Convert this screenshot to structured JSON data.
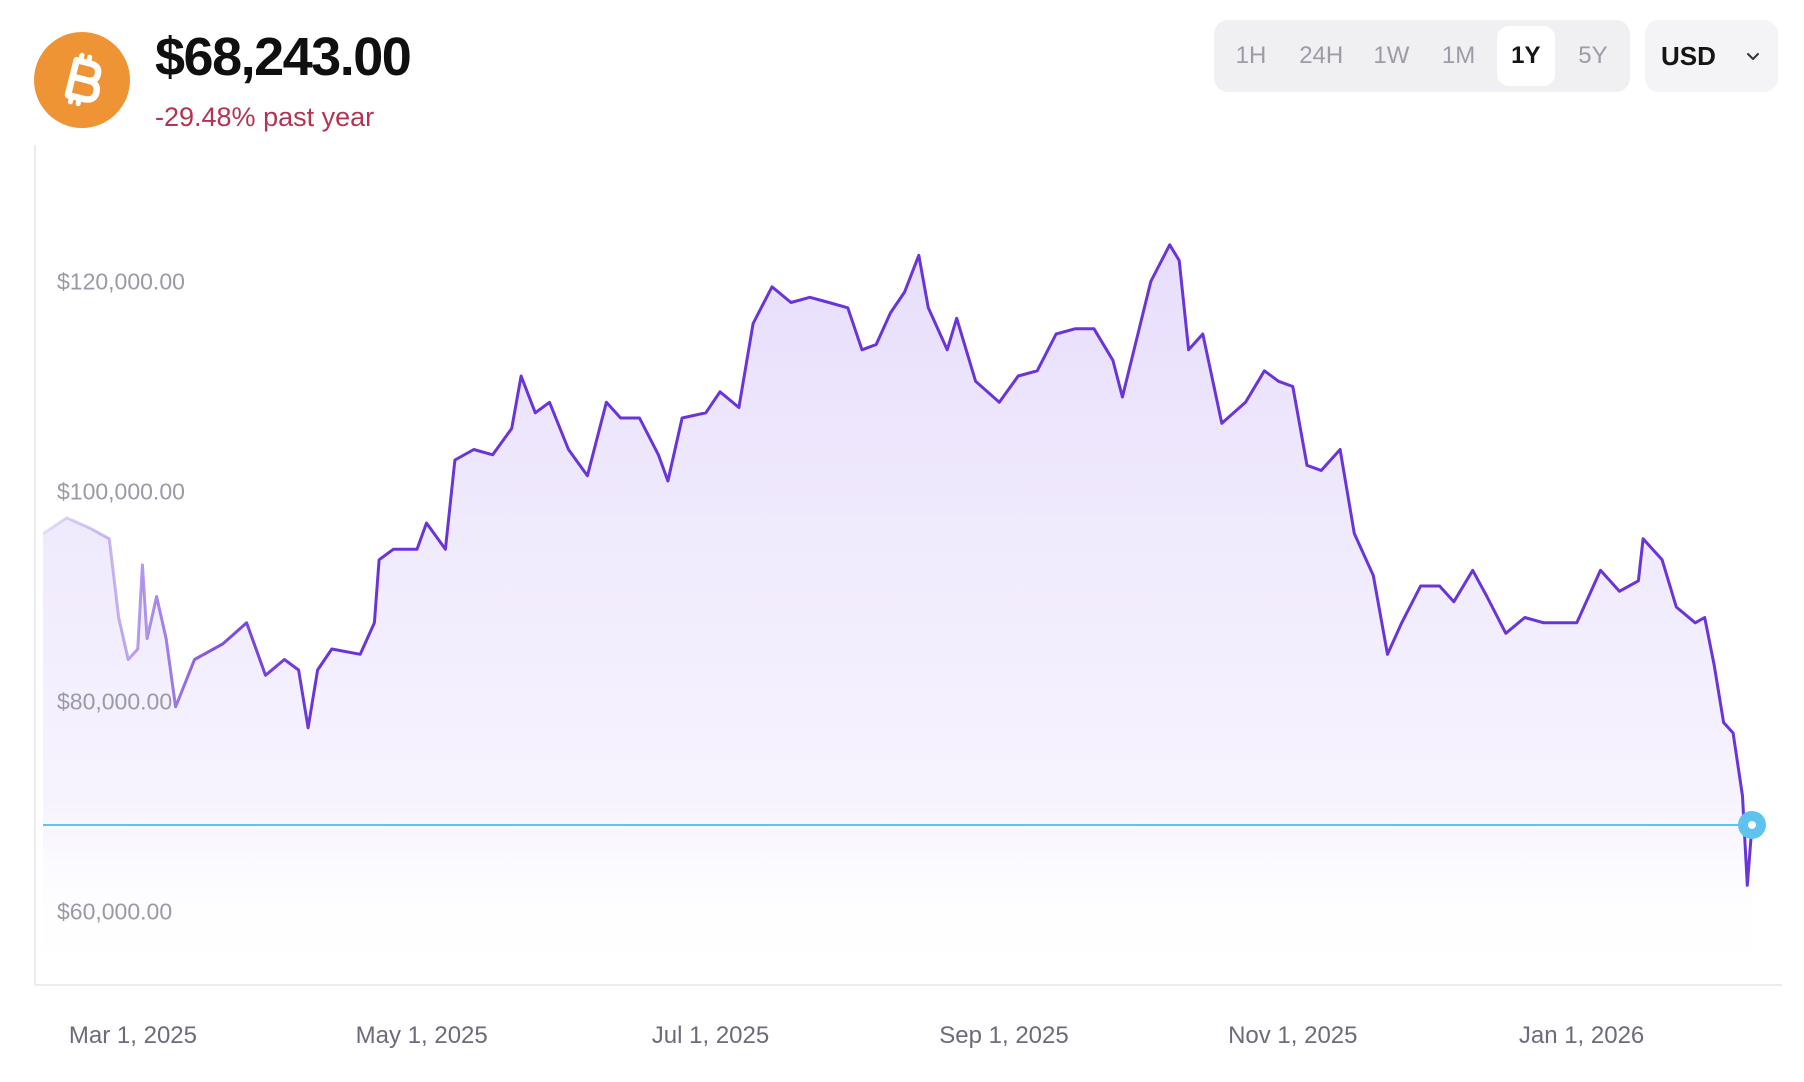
{
  "header": {
    "coin_icon": "bitcoin-icon",
    "price": "$68,243.00",
    "change": "-29.48% past year"
  },
  "ranges": [
    {
      "label": "1H",
      "active": false
    },
    {
      "label": "24H",
      "active": false
    },
    {
      "label": "1W",
      "active": false
    },
    {
      "label": "1M",
      "active": false
    },
    {
      "label": "1Y",
      "active": true
    },
    {
      "label": "5Y",
      "active": false
    }
  ],
  "currency": {
    "label": "USD",
    "icon": "chevron-down-icon"
  },
  "colors": {
    "brand": "#ef9434",
    "line": "#6a35d8",
    "area": "#e6dcfb",
    "marker": "#5ec3ef",
    "negative": "#b53350"
  },
  "chart_data": {
    "type": "area",
    "x_range": [
      "2025-02-10",
      "2026-02-06"
    ],
    "yticks": [
      {
        "value": 60000,
        "label": "$60,000.00"
      },
      {
        "value": 80000,
        "label": "$80,000.00"
      },
      {
        "value": 100000,
        "label": "$100,000.00"
      },
      {
        "value": 120000,
        "label": "$120,000.00"
      }
    ],
    "xticks": [
      {
        "date": "2025-03-01",
        "label": "Mar 1, 2025"
      },
      {
        "date": "2025-05-01",
        "label": "May 1, 2025"
      },
      {
        "date": "2025-07-01",
        "label": "Jul 1, 2025"
      },
      {
        "date": "2025-09-01",
        "label": "Sep 1, 2025"
      },
      {
        "date": "2025-11-01",
        "label": "Nov 1, 2025"
      },
      {
        "date": "2026-01-01",
        "label": "Jan 1, 2026"
      }
    ],
    "ylim": [
      53000,
      133000
    ],
    "current_value": 68243,
    "series": [
      {
        "values": [
          [
            "2025-02-10",
            96000
          ],
          [
            "2025-02-15",
            97500
          ],
          [
            "2025-02-20",
            96500
          ],
          [
            "2025-02-24",
            95500
          ],
          [
            "2025-02-26",
            88000
          ],
          [
            "2025-02-28",
            84000
          ],
          [
            "2025-03-02",
            85000
          ],
          [
            "2025-03-03",
            93000
          ],
          [
            "2025-03-04",
            86000
          ],
          [
            "2025-03-06",
            90000
          ],
          [
            "2025-03-08",
            86000
          ],
          [
            "2025-03-10",
            79500
          ],
          [
            "2025-03-14",
            84000
          ],
          [
            "2025-03-20",
            85500
          ],
          [
            "2025-03-25",
            87500
          ],
          [
            "2025-03-29",
            82500
          ],
          [
            "2025-04-02",
            84000
          ],
          [
            "2025-04-05",
            83000
          ],
          [
            "2025-04-07",
            77500
          ],
          [
            "2025-04-09",
            83000
          ],
          [
            "2025-04-12",
            85000
          ],
          [
            "2025-04-18",
            84500
          ],
          [
            "2025-04-21",
            87500
          ],
          [
            "2025-04-22",
            93500
          ],
          [
            "2025-04-25",
            94500
          ],
          [
            "2025-04-30",
            94500
          ],
          [
            "2025-05-02",
            97000
          ],
          [
            "2025-05-06",
            94500
          ],
          [
            "2025-05-08",
            103000
          ],
          [
            "2025-05-12",
            104000
          ],
          [
            "2025-05-16",
            103500
          ],
          [
            "2025-05-20",
            106000
          ],
          [
            "2025-05-22",
            111000
          ],
          [
            "2025-05-25",
            107500
          ],
          [
            "2025-05-28",
            108500
          ],
          [
            "2025-06-01",
            104000
          ],
          [
            "2025-06-05",
            101500
          ],
          [
            "2025-06-09",
            108500
          ],
          [
            "2025-06-12",
            107000
          ],
          [
            "2025-06-16",
            107000
          ],
          [
            "2025-06-20",
            103500
          ],
          [
            "2025-06-22",
            101000
          ],
          [
            "2025-06-25",
            107000
          ],
          [
            "2025-06-30",
            107500
          ],
          [
            "2025-07-03",
            109500
          ],
          [
            "2025-07-07",
            108000
          ],
          [
            "2025-07-10",
            116000
          ],
          [
            "2025-07-14",
            119500
          ],
          [
            "2025-07-18",
            118000
          ],
          [
            "2025-07-22",
            118500
          ],
          [
            "2025-07-26",
            118000
          ],
          [
            "2025-07-30",
            117500
          ],
          [
            "2025-08-02",
            113500
          ],
          [
            "2025-08-05",
            114000
          ],
          [
            "2025-08-08",
            117000
          ],
          [
            "2025-08-11",
            119000
          ],
          [
            "2025-08-14",
            122500
          ],
          [
            "2025-08-16",
            117500
          ],
          [
            "2025-08-20",
            113500
          ],
          [
            "2025-08-22",
            116500
          ],
          [
            "2025-08-26",
            110500
          ],
          [
            "2025-08-31",
            108500
          ],
          [
            "2025-09-04",
            111000
          ],
          [
            "2025-09-08",
            111500
          ],
          [
            "2025-09-12",
            115000
          ],
          [
            "2025-09-16",
            115500
          ],
          [
            "2025-09-20",
            115500
          ],
          [
            "2025-09-24",
            112500
          ],
          [
            "2025-09-26",
            109000
          ],
          [
            "2025-09-29",
            114500
          ],
          [
            "2025-10-02",
            120000
          ],
          [
            "2025-10-06",
            123500
          ],
          [
            "2025-10-08",
            122000
          ],
          [
            "2025-10-10",
            113500
          ],
          [
            "2025-10-13",
            115000
          ],
          [
            "2025-10-17",
            106500
          ],
          [
            "2025-10-22",
            108500
          ],
          [
            "2025-10-26",
            111500
          ],
          [
            "2025-10-29",
            110500
          ],
          [
            "2025-11-01",
            110000
          ],
          [
            "2025-11-04",
            102500
          ],
          [
            "2025-11-07",
            102000
          ],
          [
            "2025-11-11",
            104000
          ],
          [
            "2025-11-14",
            96000
          ],
          [
            "2025-11-18",
            92000
          ],
          [
            "2025-11-21",
            84500
          ],
          [
            "2025-11-24",
            87500
          ],
          [
            "2025-11-28",
            91000
          ],
          [
            "2025-12-02",
            91000
          ],
          [
            "2025-12-05",
            89500
          ],
          [
            "2025-12-09",
            92500
          ],
          [
            "2025-12-12",
            90000
          ],
          [
            "2025-12-16",
            86500
          ],
          [
            "2025-12-20",
            88000
          ],
          [
            "2025-12-24",
            87500
          ],
          [
            "2025-12-28",
            87500
          ],
          [
            "2025-12-31",
            87500
          ],
          [
            "2026-01-05",
            92500
          ],
          [
            "2026-01-09",
            90500
          ],
          [
            "2026-01-13",
            91500
          ],
          [
            "2026-01-14",
            95500
          ],
          [
            "2026-01-18",
            93500
          ],
          [
            "2026-01-21",
            89000
          ],
          [
            "2026-01-25",
            87500
          ],
          [
            "2026-01-27",
            88000
          ],
          [
            "2026-01-29",
            83500
          ],
          [
            "2026-01-31",
            78000
          ],
          [
            "2026-02-02",
            77000
          ],
          [
            "2026-02-04",
            71000
          ],
          [
            "2026-02-05",
            62500
          ],
          [
            "2026-02-06",
            68243
          ]
        ]
      }
    ]
  }
}
